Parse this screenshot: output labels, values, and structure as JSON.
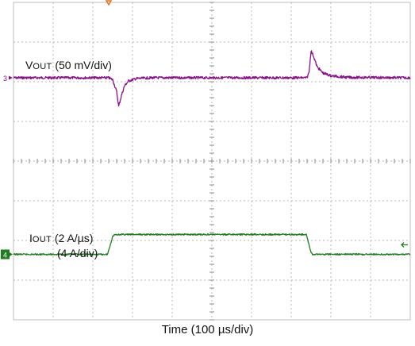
{
  "chart_data": {
    "type": "line",
    "time_div_label": "Time (100 µs/div)",
    "divisions_x": 10,
    "divisions_y": 8,
    "minor_ticks_per_div": 5,
    "grid": true,
    "trigger_marker_color": "#e07020",
    "series": [
      {
        "name_main": "V",
        "name_sub": "OUT",
        "scale_label": " (50 mV/div)",
        "channel_marker": "3",
        "color": "#8b0f8b",
        "baseline_div": 1.9,
        "points": [
          [
            0,
            0
          ],
          [
            2.4,
            0
          ],
          [
            2.5,
            -0.05
          ],
          [
            2.6,
            -0.35
          ],
          [
            2.65,
            -0.72
          ],
          [
            2.72,
            -0.45
          ],
          [
            2.8,
            -0.2
          ],
          [
            2.9,
            -0.08
          ],
          [
            3.1,
            -0.02
          ],
          [
            3.5,
            0
          ],
          [
            7.4,
            0
          ],
          [
            7.45,
            0.15
          ],
          [
            7.5,
            0.68
          ],
          [
            7.56,
            0.55
          ],
          [
            7.65,
            0.28
          ],
          [
            7.8,
            0.12
          ],
          [
            8.0,
            0.05
          ],
          [
            8.4,
            0.01
          ],
          [
            10,
            0
          ]
        ]
      },
      {
        "name_main": "I",
        "name_sub": "OUT",
        "scale_label": " (2 A/µs)",
        "scale_label2": "(4 A/div)",
        "channel_marker": "4",
        "color": "#1e7d1e",
        "baseline_div": 6.35,
        "points": [
          [
            0,
            0
          ],
          [
            2.37,
            0
          ],
          [
            2.5,
            0.45
          ],
          [
            2.55,
            0.5
          ],
          [
            7.38,
            0.5
          ],
          [
            7.5,
            0.05
          ],
          [
            7.53,
            0
          ],
          [
            10,
            0
          ]
        ]
      }
    ]
  }
}
